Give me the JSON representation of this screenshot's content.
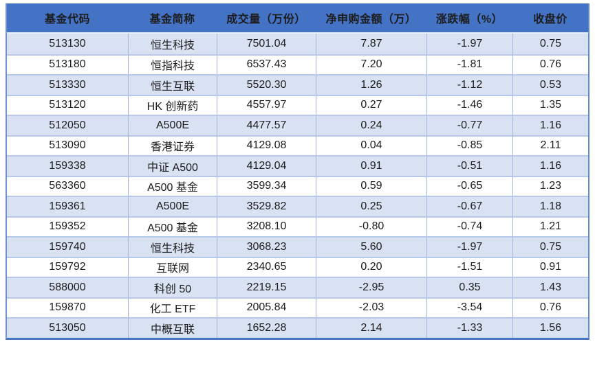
{
  "chart_data": {
    "type": "table",
    "title": "",
    "columns": [
      {
        "key": "code",
        "label": "基金代码"
      },
      {
        "key": "name",
        "label": "基金简称"
      },
      {
        "key": "volume",
        "label": "成交量（万份）"
      },
      {
        "key": "net",
        "label": "净申购金额（万）"
      },
      {
        "key": "change",
        "label": "涨跌幅（%）"
      },
      {
        "key": "close",
        "label": "收盘价"
      }
    ],
    "rows": [
      [
        "513130",
        "恒生科技",
        "7501.04",
        "7.87",
        "-1.97",
        "0.75"
      ],
      [
        "513180",
        "恒指科技",
        "6537.43",
        "7.20",
        "-1.81",
        "0.76"
      ],
      [
        "513330",
        "恒生互联",
        "5520.30",
        "1.26",
        "-1.12",
        "0.53"
      ],
      [
        "513120",
        "HK 创新药",
        "4557.97",
        "0.27",
        "-1.46",
        "1.35"
      ],
      [
        "512050",
        "A500E",
        "4477.57",
        "0.24",
        "-0.77",
        "1.16"
      ],
      [
        "513090",
        "香港证券",
        "4129.08",
        "0.04",
        "-0.85",
        "2.11"
      ],
      [
        "159338",
        "中证 A500",
        "4129.04",
        "0.91",
        "-0.51",
        "1.16"
      ],
      [
        "563360",
        "A500 基金",
        "3599.34",
        "0.59",
        "-0.65",
        "1.23"
      ],
      [
        "159361",
        "A500E",
        "3529.82",
        "0.25",
        "-0.67",
        "1.18"
      ],
      [
        "159352",
        "A500 基金",
        "3208.10",
        "-0.80",
        "-0.74",
        "1.21"
      ],
      [
        "159740",
        "恒生科技",
        "3068.23",
        "5.60",
        "-1.97",
        "0.75"
      ],
      [
        "159792",
        "互联网",
        "2340.65",
        "0.20",
        "-1.51",
        "0.91"
      ],
      [
        "588000",
        "科创 50",
        "2219.15",
        "-2.95",
        "0.35",
        "1.43"
      ],
      [
        "159870",
        "化工 ETF",
        "2005.84",
        "-2.03",
        "-3.54",
        "0.76"
      ],
      [
        "513050",
        "中概互联",
        "1652.28",
        "2.14",
        "-1.33",
        "1.56"
      ]
    ],
    "layout": {
      "banded_rows": true,
      "band_start": "first_row",
      "header_position": "top",
      "text_align": "center"
    }
  },
  "colors": {
    "header_bg": "#4472C4",
    "header_text": "#1C1C1C",
    "band_row_bg": "#D9E2F3",
    "plain_row_bg": "#FFFFFF",
    "row_divider": "#B7C8EA",
    "column_divider": "#9FB7E0",
    "outer_border": "#4676C6",
    "body_text": "#1B1B1B"
  }
}
